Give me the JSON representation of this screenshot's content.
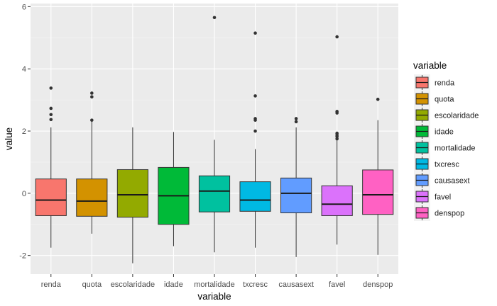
{
  "chart_data": {
    "type": "box",
    "title": "",
    "xlabel": "variable",
    "ylabel": "value",
    "ylim": [
      -2.6,
      6.1
    ],
    "yticks": [
      -2,
      0,
      2,
      4,
      6
    ],
    "grid": true,
    "legend": {
      "title": "variable",
      "placement": "right"
    },
    "categories": [
      "renda",
      "quota",
      "escolaridade",
      "idade",
      "mortalidade",
      "txcresc",
      "causasext",
      "favel",
      "denspop"
    ],
    "colors": [
      "#F8766D",
      "#D39200",
      "#93AA00",
      "#00BA38",
      "#00C19F",
      "#00B9E3",
      "#619CFF",
      "#DB72FB",
      "#FF61C3"
    ],
    "boxes": [
      {
        "name": "renda",
        "whisker_low": -1.75,
        "q1": -0.72,
        "median": -0.22,
        "q3": 0.46,
        "whisker_high": 2.12,
        "outliers": [
          2.37,
          2.53,
          2.73,
          3.38
        ]
      },
      {
        "name": "quota",
        "whisker_low": -1.3,
        "q1": -0.74,
        "median": -0.25,
        "q3": 0.46,
        "whisker_high": 2.33,
        "outliers": [
          2.35,
          3.1,
          3.22
        ]
      },
      {
        "name": "escolaridade",
        "whisker_low": -2.25,
        "q1": -0.77,
        "median": -0.05,
        "q3": 0.76,
        "whisker_high": 2.12,
        "outliers": []
      },
      {
        "name": "idade",
        "whisker_low": -1.7,
        "q1": -1.0,
        "median": -0.08,
        "q3": 0.83,
        "whisker_high": 1.97,
        "outliers": []
      },
      {
        "name": "mortalidade",
        "whisker_low": -1.9,
        "q1": -0.6,
        "median": 0.07,
        "q3": 0.56,
        "whisker_high": 1.72,
        "outliers": [
          5.65
        ]
      },
      {
        "name": "txcresc",
        "whisker_low": -1.75,
        "q1": -0.58,
        "median": -0.22,
        "q3": 0.37,
        "whisker_high": 1.42,
        "outliers": [
          2.0,
          2.35,
          2.4,
          3.13,
          5.15
        ]
      },
      {
        "name": "causasext",
        "whisker_low": -2.05,
        "q1": -0.63,
        "median": 0.0,
        "q3": 0.49,
        "whisker_high": 2.12,
        "outliers": [
          2.3,
          2.4
        ]
      },
      {
        "name": "favel",
        "whisker_low": -1.65,
        "q1": -0.72,
        "median": -0.35,
        "q3": 0.24,
        "whisker_high": 1.71,
        "outliers": [
          1.75,
          1.82,
          1.87,
          1.93,
          2.58,
          2.63,
          5.03
        ]
      },
      {
        "name": "denspop",
        "whisker_low": -1.98,
        "q1": -0.68,
        "median": -0.05,
        "q3": 0.75,
        "whisker_high": 2.35,
        "outliers": [
          3.02
        ]
      }
    ]
  }
}
